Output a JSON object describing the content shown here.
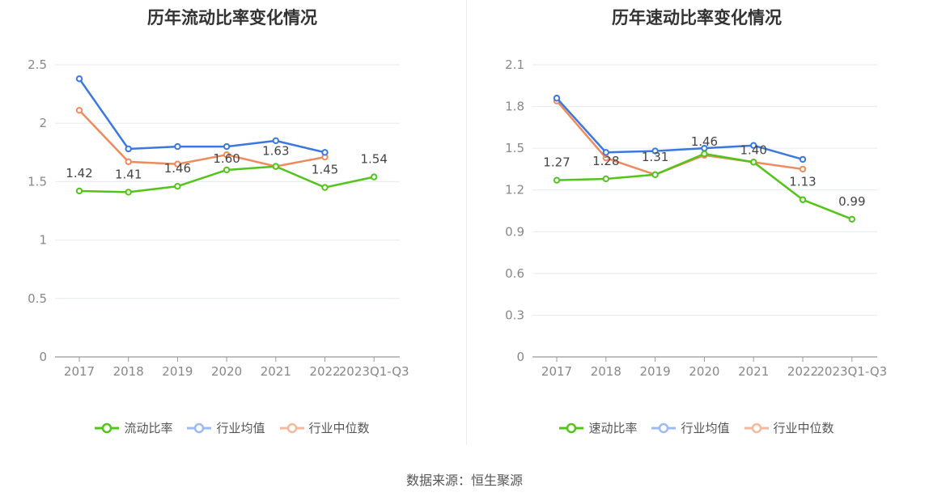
{
  "source": "数据来源：恒生聚源",
  "chart_data": [
    {
      "type": "line",
      "title": "历年流动比率变化情况",
      "categories": [
        "2017",
        "2018",
        "2019",
        "2020",
        "2021",
        "2022",
        "2023Q1-Q3"
      ],
      "ylim": [
        0,
        2.5
      ],
      "yticks": [
        "0",
        "0.5",
        "1",
        "1.5",
        "2",
        "2.5"
      ],
      "grid": true,
      "legend_position": "bottom",
      "series": [
        {
          "name": "流动比率",
          "color": "#52c41a",
          "values": [
            1.42,
            1.41,
            1.46,
            1.6,
            1.63,
            1.45,
            1.54
          ],
          "labels": [
            "1.42",
            "1.41",
            "1.46",
            "1.60",
            "1.63",
            "1.45",
            "1.54"
          ]
        },
        {
          "name": "行业均值",
          "color": "#3a78e0",
          "values": [
            2.38,
            1.78,
            1.8,
            1.8,
            1.85,
            1.75,
            null
          ]
        },
        {
          "name": "行业中位数",
          "color": "#f08a5d",
          "values": [
            2.11,
            1.67,
            1.65,
            1.73,
            1.63,
            1.71,
            null
          ]
        }
      ]
    },
    {
      "type": "line",
      "title": "历年速动比率变化情况",
      "categories": [
        "2017",
        "2018",
        "2019",
        "2020",
        "2021",
        "2022",
        "2023Q1-Q3"
      ],
      "ylim": [
        0,
        2.1
      ],
      "yticks": [
        "0",
        "0.3",
        "0.6",
        "0.9",
        "1.2",
        "1.5",
        "1.8",
        "2.1"
      ],
      "grid": true,
      "legend_position": "bottom",
      "series": [
        {
          "name": "速动比率",
          "color": "#52c41a",
          "values": [
            1.27,
            1.28,
            1.31,
            1.46,
            1.4,
            1.13,
            0.99
          ],
          "labels": [
            "1.27",
            "1.28",
            "1.31",
            "1.46",
            "1.40",
            "1.13",
            "0.99"
          ]
        },
        {
          "name": "行业均值",
          "color": "#3a78e0",
          "values": [
            1.86,
            1.47,
            1.48,
            1.5,
            1.52,
            1.42,
            null
          ]
        },
        {
          "name": "行业中位数",
          "color": "#f08a5d",
          "values": [
            1.84,
            1.43,
            1.31,
            1.45,
            1.4,
            1.35,
            null
          ]
        }
      ]
    }
  ]
}
